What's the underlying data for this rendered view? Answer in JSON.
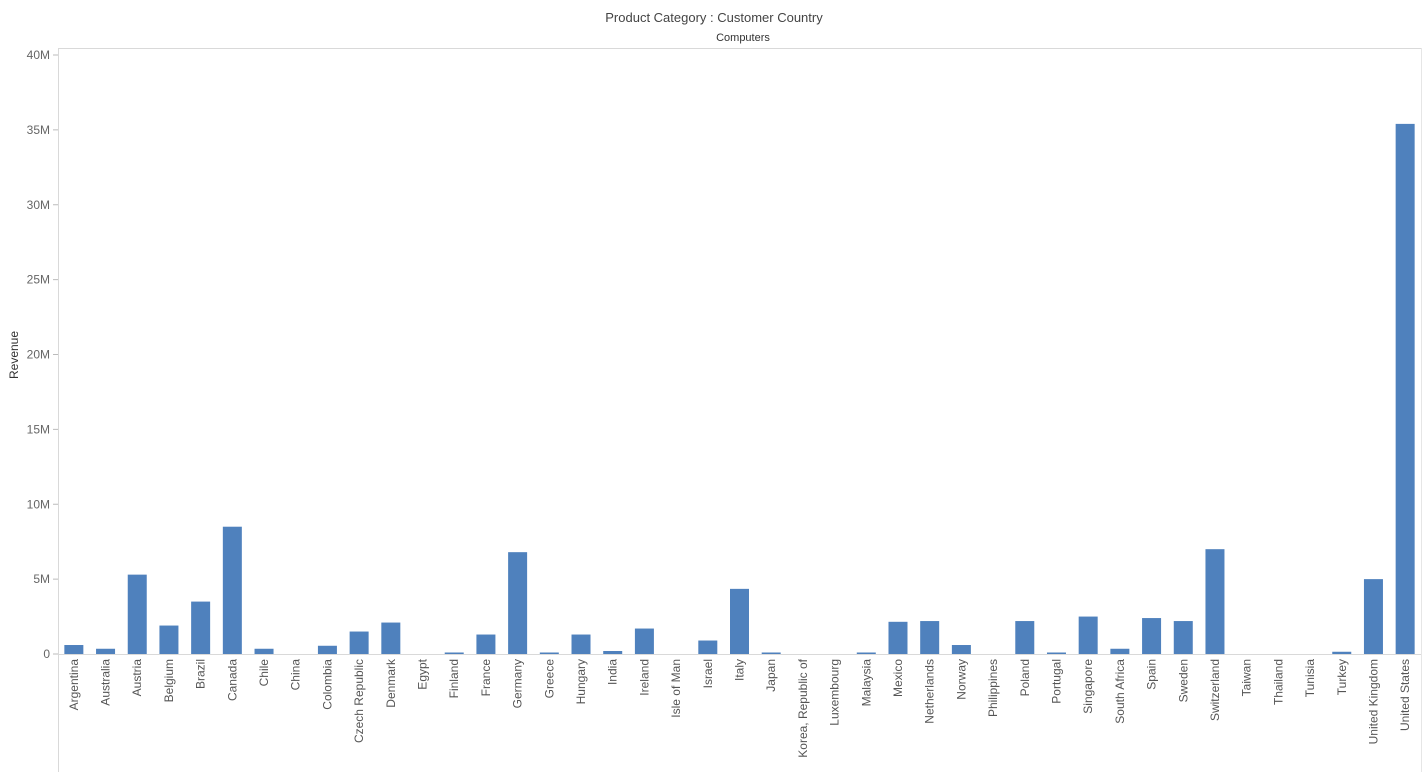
{
  "chart_data": {
    "type": "bar",
    "title": "Product Category : Customer Country",
    "subtitle": "Computers",
    "xlabel": "",
    "ylabel": "Revenue",
    "ylim": [
      0,
      40000000
    ],
    "yticks": [
      {
        "value": 0,
        "label": "0"
      },
      {
        "value": 5000000,
        "label": "5M"
      },
      {
        "value": 10000000,
        "label": "10M"
      },
      {
        "value": 15000000,
        "label": "15M"
      },
      {
        "value": 20000000,
        "label": "20M"
      },
      {
        "value": 25000000,
        "label": "25M"
      },
      {
        "value": 30000000,
        "label": "30M"
      },
      {
        "value": 35000000,
        "label": "35M"
      },
      {
        "value": 40000000,
        "label": "40M"
      }
    ],
    "grid": false,
    "bar_color": "#4f81bd",
    "categories": [
      "Argentina",
      "Australia",
      "Austria",
      "Belgium",
      "Brazil",
      "Canada",
      "Chile",
      "China",
      "Colombia",
      "Czech Republic",
      "Denmark",
      "Egypt",
      "Finland",
      "France",
      "Germany",
      "Greece",
      "Hungary",
      "India",
      "Ireland",
      "Isle of Man",
      "Israel",
      "Italy",
      "Japan",
      "Korea, Republic of",
      "Luxembourg",
      "Malaysia",
      "Mexico",
      "Netherlands",
      "Norway",
      "Philippines",
      "Poland",
      "Portugal",
      "Singapore",
      "South Africa",
      "Spain",
      "Sweden",
      "Switzerland",
      "Taiwan",
      "Thailand",
      "Tunisia",
      "Turkey",
      "United Kingdom",
      "United States"
    ],
    "values": [
      600000,
      350000,
      5300000,
      1900000,
      3500000,
      8500000,
      350000,
      0,
      550000,
      1500000,
      2100000,
      0,
      50000,
      1300000,
      6800000,
      50000,
      1300000,
      200000,
      1700000,
      0,
      900000,
      4350000,
      50000,
      0,
      0,
      50000,
      2150000,
      2200000,
      600000,
      0,
      2200000,
      50000,
      2500000,
      350000,
      2400000,
      2200000,
      7000000,
      0,
      0,
      0,
      150000,
      5000000,
      35400000
    ]
  }
}
